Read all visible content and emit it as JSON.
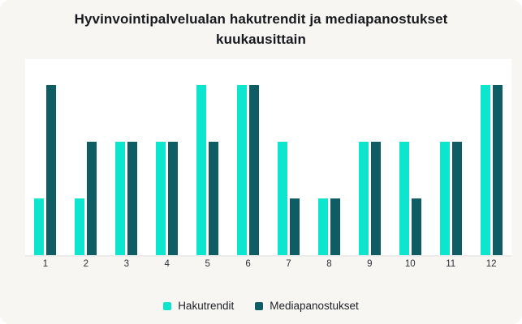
{
  "card": {
    "background_color": "#f8f6f3",
    "plot_background_color": "#ffffff",
    "baseline_color": "#ececea",
    "title_color": "#16191d",
    "tick_label_color": "#2b3036"
  },
  "chart_data": {
    "type": "bar",
    "title": "Hyvinvointipalvelualan hakutrendit ja mediapanostukset kuukausittain",
    "categories": [
      "1",
      "2",
      "3",
      "4",
      "5",
      "6",
      "7",
      "8",
      "9",
      "10",
      "11",
      "12"
    ],
    "series": [
      {
        "name": "Hakutrendit",
        "color": "#0EE5CF",
        "values": [
          1,
          1,
          2,
          2,
          3,
          3,
          2,
          1,
          2,
          2,
          2,
          3
        ]
      },
      {
        "name": "Mediapanostukset",
        "color": "#0E5C64",
        "values": [
          3,
          2,
          2,
          2,
          2,
          3,
          1,
          1,
          2,
          1,
          2,
          3
        ]
      }
    ],
    "xlabel": "",
    "ylabel": "",
    "ylim": [
      0,
      3.5
    ],
    "grid": false,
    "y_axis_visible": false,
    "legend_position": "bottom"
  }
}
